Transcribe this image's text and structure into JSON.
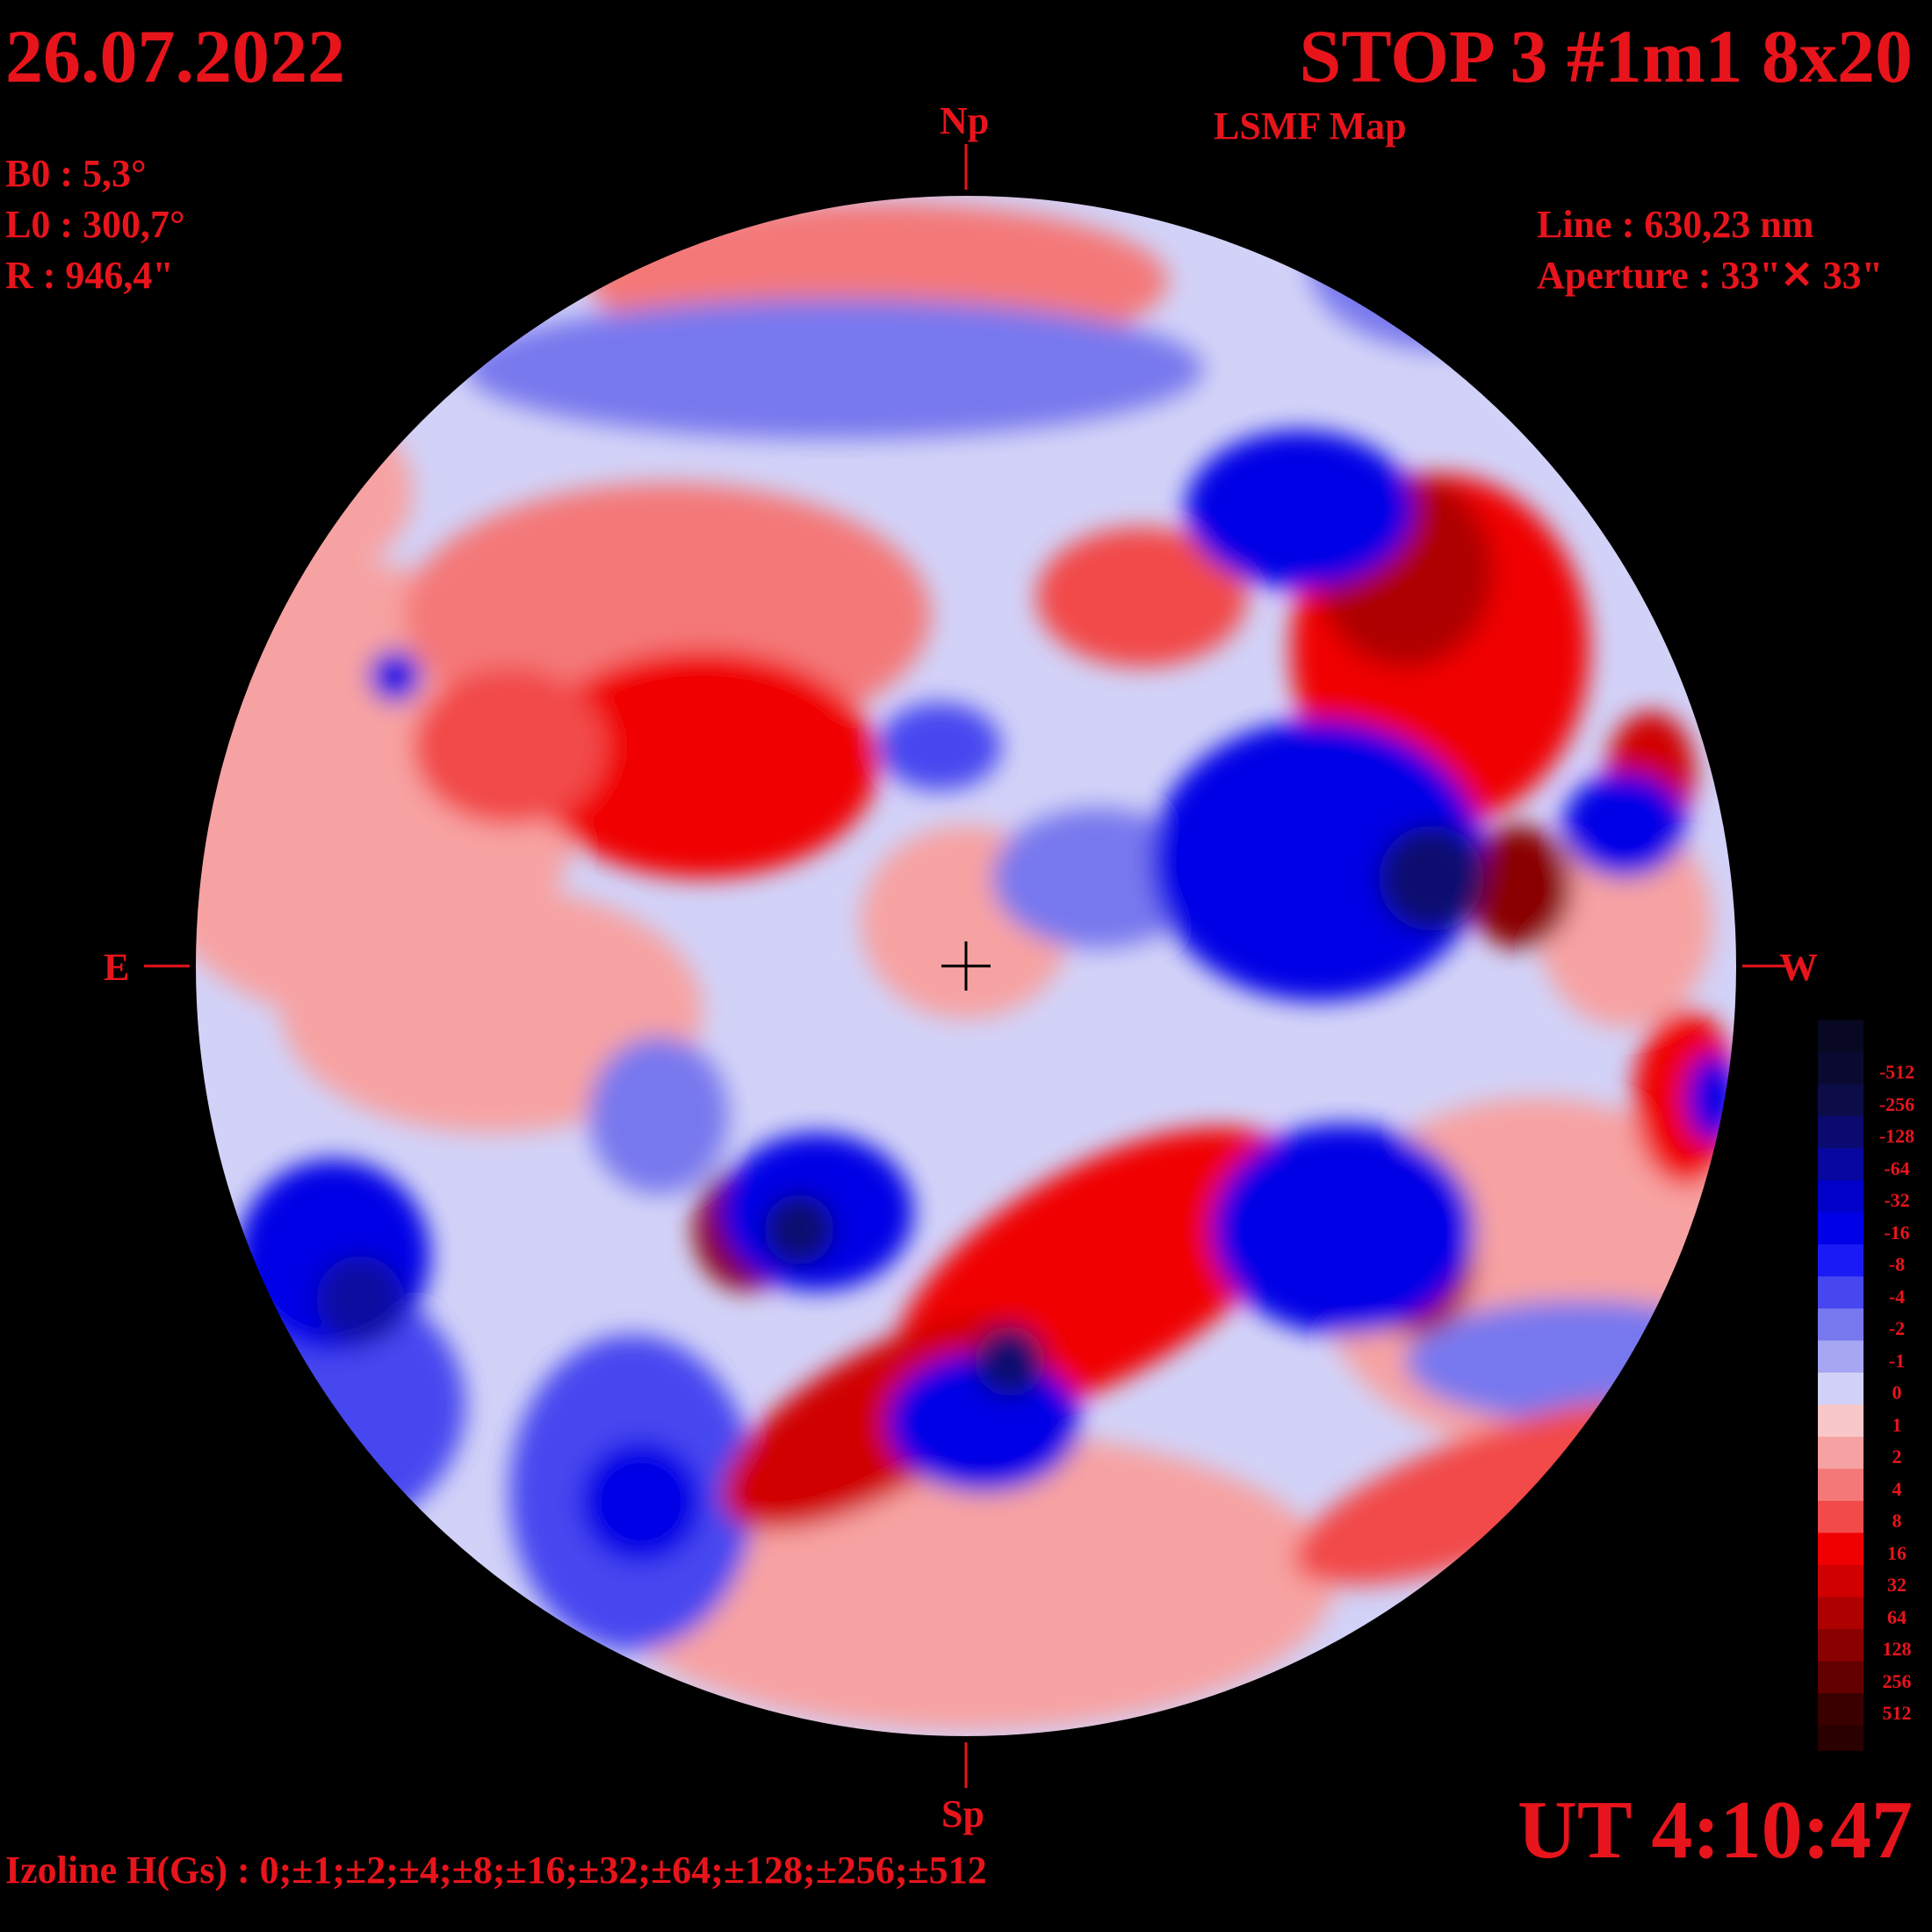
{
  "header": {
    "date": "26.07.2022",
    "title": "STOP 3 #1m1 8x20",
    "subtitle": "LSMF  Map"
  },
  "params": {
    "b0": "B0 : 5,3°",
    "l0": "L0 : 300,7°",
    "radius": "R  : 946,4\"",
    "line": "Line :  630,23 nm",
    "aperture": "Aperture : 33\"✕ 33\""
  },
  "directions": {
    "north": "Np",
    "south": "Sp",
    "east": "E",
    "west": "W"
  },
  "footer": {
    "time": "UT 4:10:47",
    "izoline": "Izoline H(Gs) : 0;±1;±2;±4;±8;±16;±32;±64;±128;±256;±512"
  },
  "colorbar": {
    "levels": [
      "-512",
      "-256",
      "-128",
      "-64",
      "-32",
      "-16",
      "-8",
      "-4",
      "-2",
      "-1",
      "0",
      "1",
      "2",
      "4",
      "8",
      "16",
      "32",
      "64",
      "128",
      "256",
      "512"
    ],
    "colors": [
      "#0a0a30",
      "#0c0c48",
      "#0a0a70",
      "#0808a0",
      "#0000c8",
      "#0000e6",
      "#1a1af5",
      "#4747f0",
      "#7878ee",
      "#a6a6f2",
      "#d2d2f8",
      "#f8c8c8",
      "#f7a2a2",
      "#f47878",
      "#f24a4a",
      "#f00000",
      "#d00000",
      "#ae0000",
      "#8a0000",
      "#620000",
      "#3a0000"
    ]
  },
  "map": {
    "background_disk_color": "#d2d2f8",
    "positive_color": "#e8141b",
    "negative_color": "#0000e0"
  }
}
